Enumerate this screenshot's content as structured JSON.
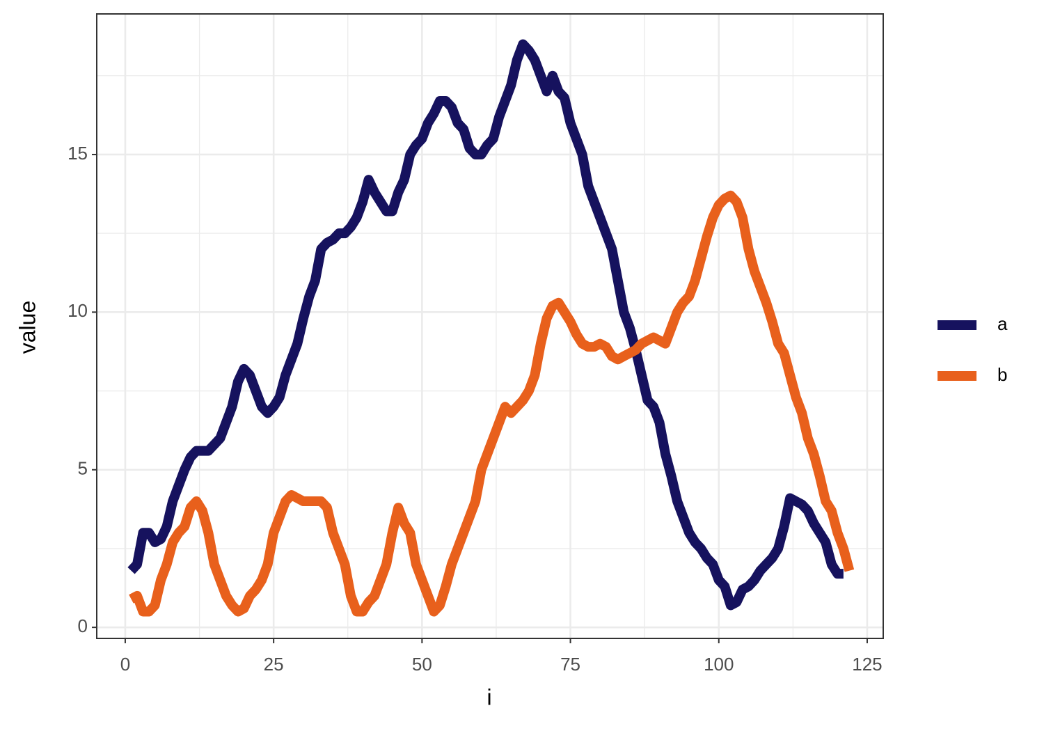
{
  "chart_data": {
    "type": "line",
    "x_label": "i",
    "y_label": "value",
    "x": [
      1,
      2,
      3,
      4,
      5,
      6,
      7,
      8,
      9,
      10,
      11,
      12,
      13,
      14,
      15,
      16,
      17,
      18,
      19,
      20,
      21,
      22,
      23,
      24,
      25,
      26,
      27,
      28,
      29,
      30,
      31,
      32,
      33,
      34,
      35,
      36,
      37,
      38,
      39,
      40,
      41,
      42,
      43,
      44,
      45,
      46,
      47,
      48,
      49,
      50,
      51,
      52,
      53,
      54,
      55,
      56,
      57,
      58,
      59,
      60,
      61,
      62,
      63,
      64,
      65,
      66,
      67,
      68,
      69,
      70,
      71,
      72,
      73,
      74,
      75,
      76,
      77,
      78,
      79,
      80,
      81,
      82,
      83,
      84,
      85,
      86,
      87,
      88,
      89,
      90,
      91,
      92,
      93,
      94,
      95,
      96,
      97,
      98,
      99,
      100,
      101,
      102,
      103,
      104,
      105,
      106,
      107,
      108,
      109,
      110,
      111,
      112,
      113,
      114,
      115,
      116,
      117,
      118,
      119,
      120,
      121,
      122
    ],
    "series": [
      {
        "name": "a",
        "color": "#16125e",
        "values": [
          1.8,
          2.0,
          3.0,
          3.0,
          2.7,
          2.8,
          3.2,
          4.0,
          4.5,
          5.0,
          5.4,
          5.6,
          5.6,
          5.6,
          5.8,
          6.0,
          6.5,
          7.0,
          7.8,
          8.2,
          8.0,
          7.5,
          7.0,
          6.8,
          7.0,
          7.3,
          8.0,
          8.5,
          9.0,
          9.8,
          10.5,
          11.0,
          12.0,
          12.2,
          12.3,
          12.5,
          12.5,
          12.7,
          13.0,
          13.5,
          14.2,
          13.8,
          13.5,
          13.2,
          13.2,
          13.8,
          14.2,
          15.0,
          15.3,
          15.5,
          16.0,
          16.3,
          16.7,
          16.7,
          16.5,
          16.0,
          15.8,
          15.2,
          15.0,
          15.0,
          15.3,
          15.5,
          16.2,
          16.7,
          17.2,
          18.0,
          18.5,
          18.3,
          18.0,
          17.5,
          17.0,
          17.5,
          17.0,
          16.8,
          16.0,
          15.5,
          15.0,
          14.0,
          13.5,
          13.0,
          12.5,
          12.0,
          11.0,
          10.0,
          9.5,
          8.8,
          8.0,
          7.2,
          7.0,
          6.5,
          5.5,
          4.8,
          4.0,
          3.5,
          3.0,
          2.7,
          2.5,
          2.2,
          2.0,
          1.5,
          1.3,
          0.7,
          0.8,
          1.2,
          1.3,
          1.5,
          1.8,
          2.0,
          2.2,
          2.5,
          3.2,
          4.1,
          4.0,
          3.9,
          3.7,
          3.3,
          3.0,
          2.7,
          2.0,
          1.7,
          1.7,
          null
        ]
      },
      {
        "name": "b",
        "color": "#e8601c",
        "values": [
          0.9,
          1.0,
          0.5,
          0.5,
          0.7,
          1.5,
          2.0,
          2.7,
          3.0,
          3.2,
          3.8,
          4.0,
          3.7,
          3.0,
          2.0,
          1.5,
          1.0,
          0.7,
          0.5,
          0.6,
          1.0,
          1.2,
          1.5,
          2.0,
          3.0,
          3.5,
          4.0,
          4.2,
          4.1,
          4.0,
          4.0,
          4.0,
          4.0,
          3.8,
          3.0,
          2.5,
          2.0,
          1.0,
          0.5,
          0.5,
          0.8,
          1.0,
          1.5,
          2.0,
          3.0,
          3.8,
          3.3,
          3.0,
          2.0,
          1.5,
          1.0,
          0.5,
          0.7,
          1.3,
          2.0,
          2.5,
          3.0,
          3.5,
          4.0,
          5.0,
          5.5,
          6.0,
          6.5,
          7.0,
          6.8,
          7.0,
          7.2,
          7.5,
          8.0,
          9.0,
          9.8,
          10.2,
          10.3,
          10.0,
          9.7,
          9.3,
          9.0,
          8.9,
          8.9,
          9.0,
          8.9,
          8.6,
          8.5,
          8.6,
          8.7,
          8.8,
          9.0,
          9.1,
          9.2,
          9.1,
          9.0,
          9.5,
          10.0,
          10.3,
          10.5,
          11.0,
          11.7,
          12.4,
          13.0,
          13.4,
          13.6,
          13.7,
          13.5,
          13.0,
          12.0,
          11.3,
          10.8,
          10.3,
          9.7,
          9.0,
          8.7,
          8.0,
          7.3,
          6.8,
          6.0,
          5.5,
          4.8,
          4.0,
          3.7,
          3.0,
          2.5,
          1.8
        ]
      }
    ],
    "xlim": [
      -4.8,
      127.7
    ],
    "xticks": [
      0,
      25,
      50,
      75,
      100,
      125
    ],
    "ylim": [
      -0.35,
      19.46
    ],
    "yticks": [
      0,
      5,
      10,
      15
    ],
    "grid": true,
    "legend": "right"
  }
}
